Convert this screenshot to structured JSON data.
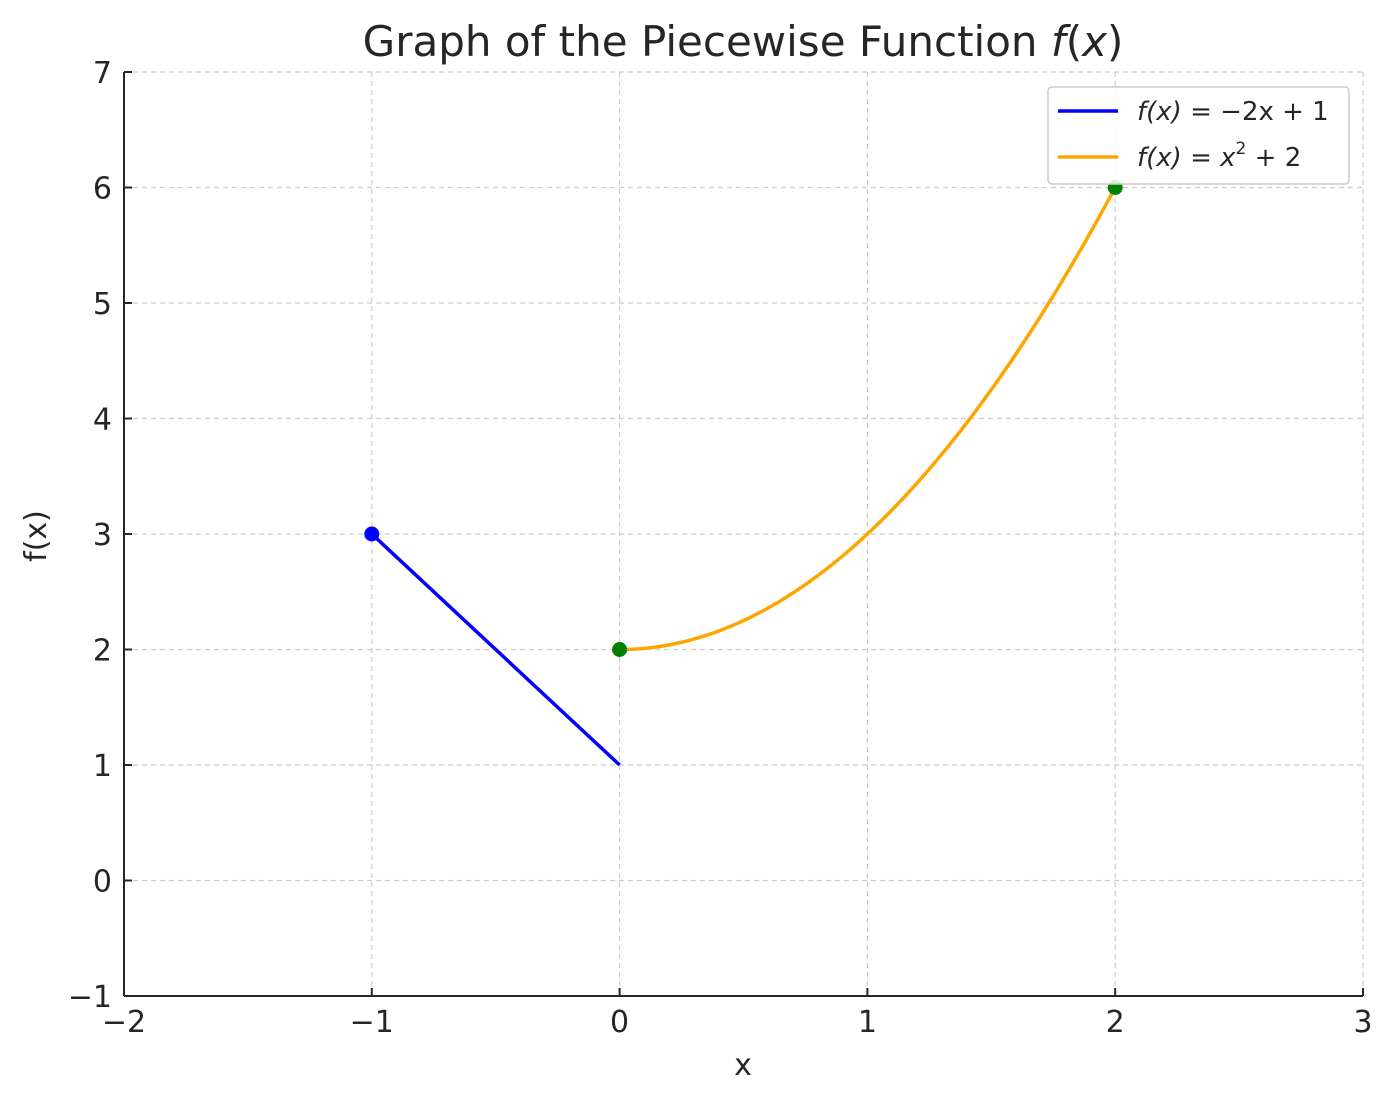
{
  "chart_data": {
    "type": "line",
    "title": "Graph of the Piecewise Function f(x)",
    "title_parts": {
      "prefix": "Graph of the Piecewise Function ",
      "func": "f",
      "open": "(",
      "var": "x",
      "close": ")"
    },
    "xlabel": "x",
    "ylabel": "f(x)",
    "xlim": [
      -2,
      3
    ],
    "ylim": [
      -1,
      7
    ],
    "xticks": [
      -2,
      -1,
      0,
      1,
      2,
      3
    ],
    "yticks": [
      -1,
      0,
      1,
      2,
      3,
      4,
      5,
      6,
      7
    ],
    "xtick_labels": [
      "−2",
      "−1",
      "0",
      "1",
      "2",
      "3"
    ],
    "ytick_labels": [
      "−1",
      "0",
      "1",
      "2",
      "3",
      "4",
      "5",
      "6",
      "7"
    ],
    "grid": true,
    "legend_placement": "top-right",
    "series": [
      {
        "name": "f(x) = −2x + 1",
        "legend_parts": {
          "lhs": "f(x) = ",
          "rhs": "−2x + 1",
          "sup": ""
        },
        "color": "#0000ff",
        "x": [
          -1,
          0
        ],
        "y": [
          3,
          1
        ],
        "markers": [
          {
            "x": -1,
            "y": 3,
            "color": "#0000ff"
          }
        ]
      },
      {
        "name": "f(x) = x² + 2",
        "legend_parts": {
          "lhs": "f(x) = ",
          "rhs": "x",
          "sup": "2",
          "tail": " + 2"
        },
        "color": "#ffa500",
        "function": "x^2 + 2",
        "x_domain": [
          0,
          2
        ],
        "markers": [
          {
            "x": 0,
            "y": 2,
            "color": "#008000"
          },
          {
            "x": 2,
            "y": 6,
            "color": "#008000"
          }
        ]
      }
    ]
  }
}
